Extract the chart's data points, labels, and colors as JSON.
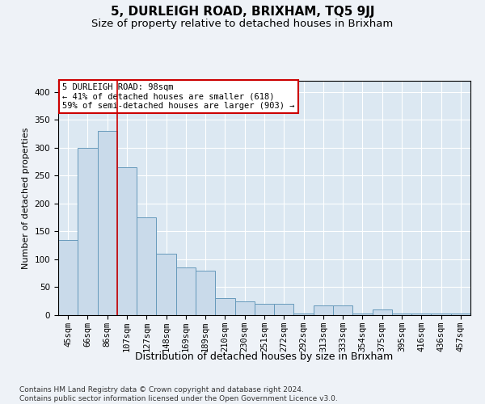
{
  "title": "5, DURLEIGH ROAD, BRIXHAM, TQ5 9JJ",
  "subtitle": "Size of property relative to detached houses in Brixham",
  "xlabel": "Distribution of detached houses by size in Brixham",
  "ylabel": "Number of detached properties",
  "categories": [
    "45sqm",
    "66sqm",
    "86sqm",
    "107sqm",
    "127sqm",
    "148sqm",
    "169sqm",
    "189sqm",
    "210sqm",
    "230sqm",
    "251sqm",
    "272sqm",
    "292sqm",
    "313sqm",
    "333sqm",
    "354sqm",
    "375sqm",
    "395sqm",
    "416sqm",
    "436sqm",
    "457sqm"
  ],
  "values": [
    135,
    300,
    330,
    265,
    175,
    110,
    85,
    80,
    30,
    25,
    20,
    20,
    3,
    18,
    18,
    3,
    10,
    3,
    3,
    3,
    3
  ],
  "bar_color": "#c9daea",
  "bar_edge_color": "#6699bb",
  "red_line_x": 2.5,
  "annotation_text": "5 DURLEIGH ROAD: 98sqm\n← 41% of detached houses are smaller (618)\n59% of semi-detached houses are larger (903) →",
  "annotation_box_facecolor": "#ffffff",
  "annotation_box_edgecolor": "#cc0000",
  "ylim": [
    0,
    420
  ],
  "background_color": "#eef2f7",
  "plot_bg_color": "#dce8f2",
  "grid_color": "#ffffff",
  "footer_text": "Contains HM Land Registry data © Crown copyright and database right 2024.\nContains public sector information licensed under the Open Government Licence v3.0.",
  "title_fontsize": 11,
  "subtitle_fontsize": 9.5,
  "xlabel_fontsize": 9,
  "ylabel_fontsize": 8,
  "tick_fontsize": 7.5,
  "footer_fontsize": 6.5
}
